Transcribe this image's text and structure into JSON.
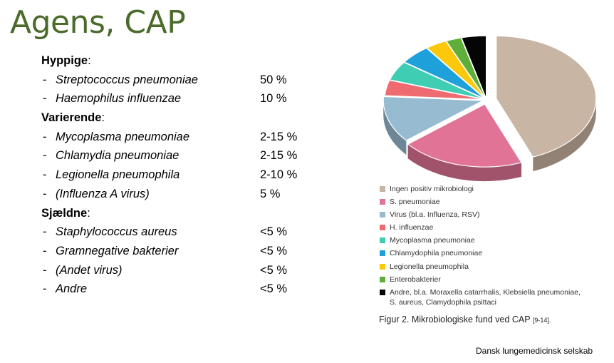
{
  "page": {
    "title": "Agens, CAP",
    "source": "Dansk lungemedicinsk selskab"
  },
  "sections": [
    {
      "heading": "Hyppige",
      "items": [
        {
          "dash": "-",
          "name": "Streptococcus pneumoniae",
          "value": "50 %"
        },
        {
          "dash": "-",
          "name": "Haemophilus influenzae",
          "value": "10 %"
        }
      ]
    },
    {
      "heading": "Varierende",
      "items": [
        {
          "dash": "-",
          "name": "Mycoplasma pneumoniae",
          "value": "2-15 %"
        },
        {
          "dash": "-",
          "name": "Chlamydia pneumoniae",
          "value": "2-15 %"
        },
        {
          "dash": "-",
          "name": "Legionella pneumophila",
          "value": "2-10 %"
        },
        {
          "dash": "-",
          "name": "(Influenza A virus)",
          "value": "5 %"
        }
      ]
    },
    {
      "heading": "Sjældne",
      "items": [
        {
          "dash": "-",
          "name": "Staphylococcus aureus",
          "value": "<5 %"
        },
        {
          "dash": "-",
          "name": "Gramnegative bakterier",
          "value": "<5 %"
        },
        {
          "dash": "-",
          "name": "(Andet virus)",
          "value": "<5 %"
        },
        {
          "dash": "-",
          "name": "Andre",
          "value": "<5 %"
        }
      ]
    }
  ],
  "chart_data": {
    "type": "pie",
    "style": "3d-exploded",
    "legend_position": "bottom",
    "categories": [
      "Ingen positiv mikrobiologi",
      "S. pneumoniae",
      "Virus (bl.a. Influenza, RSV)",
      "H. influenzae",
      "Mycoplasma pneumoniae",
      "Chlamydophila pneumoniae",
      "Legionella pneumophila",
      "Enterobakterier",
      "Andre, bl.a. Moraxella catarrhalis, Klebsiella pneumoniae,\nS. aureus, Clamydophila psittaci"
    ],
    "values": [
      44,
      20,
      12,
      4,
      5,
      5,
      3.5,
      2.5,
      4
    ],
    "colors": [
      "#c9b5a3",
      "#e07396",
      "#97bcd1",
      "#ee6b72",
      "#3fcdb4",
      "#1ea1db",
      "#fcc80b",
      "#5fae3a",
      "#050505"
    ],
    "caption": "Figur 2. Mikrobiologiske fund ved CAP",
    "caption_ref": "[9-14]."
  }
}
